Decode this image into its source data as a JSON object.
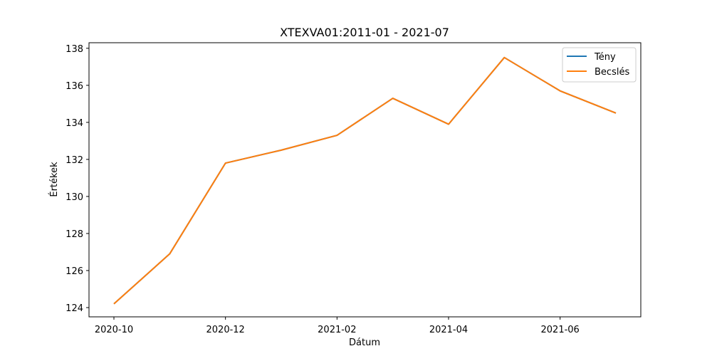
{
  "chart_data": {
    "type": "line",
    "title": "XTEXVA01:2011-01 - 2021-07",
    "xlabel": "Dátum",
    "ylabel": "Értékek",
    "x": [
      "2020-10",
      "2020-11",
      "2020-12",
      "2021-01",
      "2021-02",
      "2021-03",
      "2021-04",
      "2021-05",
      "2021-06",
      "2021-07"
    ],
    "x_ticks": [
      "2020-10",
      "2020-12",
      "2021-02",
      "2021-04",
      "2021-06"
    ],
    "y_ticks": [
      124,
      126,
      128,
      130,
      132,
      134,
      136,
      138
    ],
    "ylim": [
      123.5,
      138.3
    ],
    "grid": false,
    "legend_position": "top-right",
    "series": [
      {
        "name": "Tény",
        "color": "#1f77b4",
        "values": [
          124.2,
          126.9,
          131.8,
          132.5,
          133.3,
          135.3,
          133.9,
          137.5,
          135.7,
          134.5
        ]
      },
      {
        "name": "Becslés",
        "color": "#ff7f0e",
        "values": [
          124.2,
          126.9,
          131.8,
          132.5,
          133.3,
          135.3,
          133.9,
          137.5,
          135.7,
          134.5
        ]
      }
    ]
  }
}
